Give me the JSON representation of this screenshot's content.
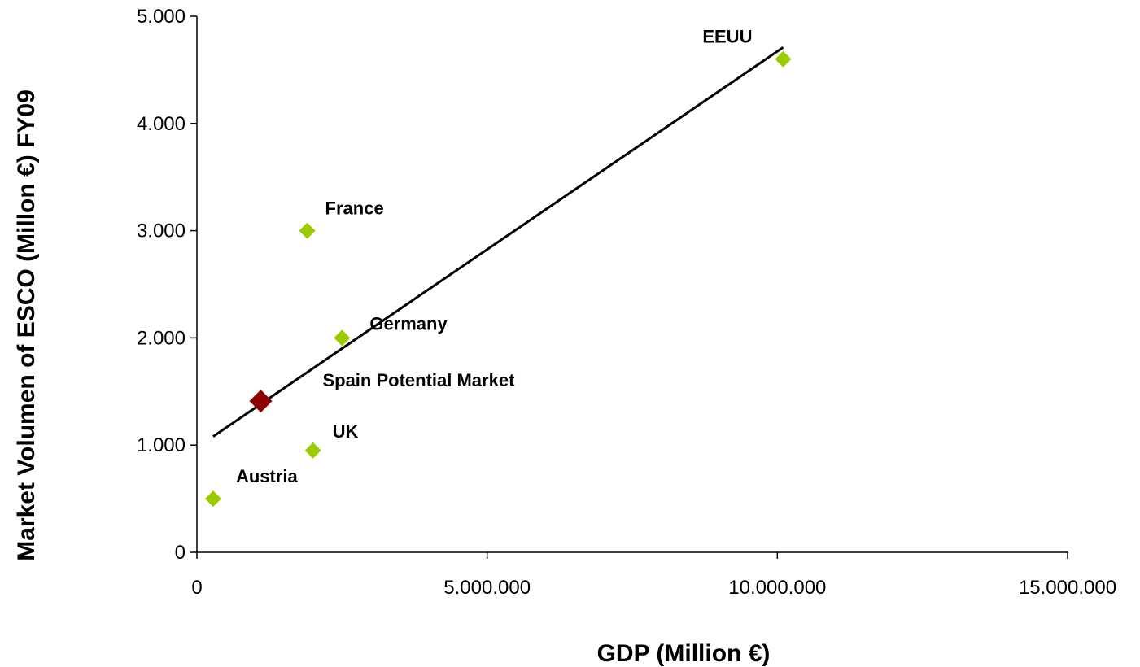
{
  "chart_data": {
    "type": "scatter",
    "title": "",
    "xlabel": "GDP (Million  €)",
    "ylabel": "Market Volumen of ESCO (Millon €) FY09",
    "xlim": [
      0,
      15000000
    ],
    "ylim": [
      0,
      5000
    ],
    "x_ticks": [
      {
        "value": 0,
        "label": "0"
      },
      {
        "value": 5000000,
        "label": "5.000.000"
      },
      {
        "value": 10000000,
        "label": "10.000.000"
      },
      {
        "value": 15000000,
        "label": "15.000.000"
      }
    ],
    "y_ticks": [
      {
        "value": 0,
        "label": "0"
      },
      {
        "value": 1000,
        "label": "1.000"
      },
      {
        "value": 2000,
        "label": "2.000"
      },
      {
        "value": 3000,
        "label": "3.000"
      },
      {
        "value": 4000,
        "label": "4.000"
      },
      {
        "value": 5000,
        "label": "5.000"
      }
    ],
    "grid": false,
    "legend": "none",
    "points": [
      {
        "label": "EEUU",
        "x": 10100000,
        "y": 4600,
        "color": "#99cc00"
      },
      {
        "label": "France",
        "x": 1900000,
        "y": 3000,
        "color": "#99cc00"
      },
      {
        "label": "Germany",
        "x": 2500000,
        "y": 2000,
        "color": "#99cc00"
      },
      {
        "label": "UK",
        "x": 2000000,
        "y": 950,
        "color": "#99cc00"
      },
      {
        "label": "Austria",
        "x": 280000,
        "y": 500,
        "color": "#99cc00"
      },
      {
        "label": "Spain Potential Market",
        "x": 1100000,
        "y": 1410,
        "color": "#8b0000",
        "label_color": "#c00000"
      }
    ],
    "trendline": {
      "type": "linear",
      "color": "#000000",
      "points": [
        {
          "x": 280000,
          "y": 1080
        },
        {
          "x": 10100000,
          "y": 4710
        }
      ]
    }
  }
}
